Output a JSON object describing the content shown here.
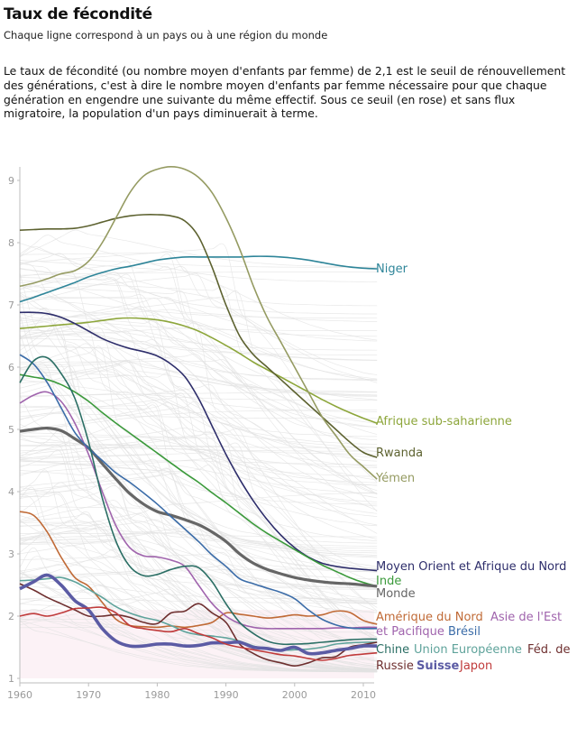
{
  "header": {
    "title": "Taux de fécondité",
    "subtitle": "Chaque ligne correspond à un pays ou à une région du monde",
    "description": "Le taux de fécondité (ou nombre moyen d'enfants par femme) de 2,1 est le seuil de rénouvellement des générations, c'est à dire le nombre moyen d'enfants par femme nécessaire pour que chaque génération en engendre une suivante du même effectif. Sous ce seuil (en rose) et sans flux migratoire, la population d'un pays diminuerait à terme."
  },
  "chart_data": {
    "type": "line",
    "title": "Taux de fécondité",
    "xlabel": "",
    "ylabel": "",
    "xlim": [
      1960,
      2012
    ],
    "ylim": [
      1,
      9.2
    ],
    "x_ticks": [
      "1960",
      "1970",
      "1980",
      "1990",
      "2000",
      "2010"
    ],
    "y_ticks": [
      "1",
      "2",
      "3",
      "4",
      "5",
      "6",
      "7",
      "8",
      "9"
    ],
    "threshold": {
      "value": 2.1,
      "label": "seuil de renouvellement",
      "fill": "#fcf2f6"
    },
    "background_lines_color": "#e2e2e2",
    "x": [
      1960,
      1962,
      1964,
      1966,
      1968,
      1970,
      1972,
      1974,
      1976,
      1978,
      1980,
      1982,
      1984,
      1986,
      1988,
      1990,
      1992,
      1994,
      1996,
      1998,
      2000,
      2002,
      2004,
      2006,
      2008,
      2010,
      2012
    ],
    "series": [
      {
        "name": "Niger",
        "color": "#2e8599",
        "width": 1.6,
        "values": [
          7.05,
          7.12,
          7.2,
          7.28,
          7.36,
          7.45,
          7.52,
          7.58,
          7.62,
          7.67,
          7.72,
          7.75,
          7.77,
          7.77,
          7.77,
          7.77,
          7.77,
          7.78,
          7.78,
          7.77,
          7.75,
          7.72,
          7.68,
          7.64,
          7.61,
          7.59,
          7.58
        ]
      },
      {
        "name": "Afrique sub-saharienne",
        "color": "#8da63b",
        "width": 1.6,
        "values": [
          6.62,
          6.64,
          6.66,
          6.68,
          6.7,
          6.72,
          6.75,
          6.78,
          6.79,
          6.78,
          6.76,
          6.72,
          6.66,
          6.58,
          6.47,
          6.35,
          6.22,
          6.08,
          5.96,
          5.84,
          5.72,
          5.6,
          5.48,
          5.37,
          5.27,
          5.18,
          5.1
        ]
      },
      {
        "name": "Rwanda",
        "color": "#5d6230",
        "width": 1.6,
        "values": [
          8.2,
          8.21,
          8.22,
          8.22,
          8.23,
          8.27,
          8.33,
          8.39,
          8.43,
          8.45,
          8.45,
          8.43,
          8.35,
          8.1,
          7.6,
          7.0,
          6.5,
          6.2,
          6.0,
          5.8,
          5.6,
          5.4,
          5.2,
          5.0,
          4.8,
          4.63,
          4.55
        ]
      },
      {
        "name": "Yémen",
        "color": "#959b62",
        "width": 1.6,
        "values": [
          7.3,
          7.35,
          7.42,
          7.5,
          7.55,
          7.7,
          8.0,
          8.4,
          8.8,
          9.07,
          9.18,
          9.22,
          9.18,
          9.05,
          8.8,
          8.4,
          7.9,
          7.3,
          6.8,
          6.4,
          6.0,
          5.6,
          5.2,
          4.9,
          4.6,
          4.4,
          4.2
        ]
      },
      {
        "name": "Moyen Orient et Afrique du Nord",
        "color": "#2e2e6b",
        "width": 1.6,
        "values": [
          6.88,
          6.88,
          6.86,
          6.8,
          6.7,
          6.58,
          6.46,
          6.37,
          6.3,
          6.25,
          6.18,
          6.05,
          5.85,
          5.5,
          5.05,
          4.6,
          4.2,
          3.85,
          3.55,
          3.3,
          3.1,
          2.95,
          2.85,
          2.8,
          2.77,
          2.75,
          2.73
        ]
      },
      {
        "name": "Inde",
        "color": "#3b9a3b",
        "width": 1.6,
        "values": [
          5.88,
          5.84,
          5.8,
          5.72,
          5.6,
          5.45,
          5.27,
          5.1,
          4.94,
          4.78,
          4.62,
          4.46,
          4.3,
          4.15,
          3.98,
          3.82,
          3.65,
          3.48,
          3.33,
          3.2,
          3.07,
          2.94,
          2.82,
          2.72,
          2.62,
          2.54,
          2.48
        ]
      },
      {
        "name": "Monde",
        "color": "#666666",
        "width": 3.2,
        "values": [
          4.97,
          5.0,
          5.02,
          4.98,
          4.85,
          4.7,
          4.45,
          4.2,
          3.97,
          3.8,
          3.68,
          3.62,
          3.55,
          3.47,
          3.35,
          3.2,
          3.0,
          2.85,
          2.75,
          2.68,
          2.62,
          2.58,
          2.55,
          2.53,
          2.52,
          2.5,
          2.48
        ]
      },
      {
        "name": "Amérique du Nord",
        "color": "#c06a36",
        "width": 1.6,
        "values": [
          3.68,
          3.62,
          3.35,
          2.95,
          2.62,
          2.48,
          2.22,
          1.95,
          1.85,
          1.83,
          1.82,
          1.84,
          1.82,
          1.85,
          1.9,
          2.05,
          2.03,
          2.0,
          1.97,
          1.99,
          2.02,
          2.0,
          2.02,
          2.08,
          2.06,
          1.93,
          1.87
        ]
      },
      {
        "name": "Asie de l'Est et Pacifique",
        "color": "#a064ad",
        "width": 1.6,
        "values": [
          5.42,
          5.55,
          5.6,
          5.45,
          5.1,
          4.6,
          4.0,
          3.45,
          3.1,
          2.97,
          2.95,
          2.9,
          2.8,
          2.5,
          2.2,
          2.0,
          1.88,
          1.82,
          1.8,
          1.8,
          1.8,
          1.8,
          1.8,
          1.81,
          1.81,
          1.82,
          1.82
        ]
      },
      {
        "name": "Brésil",
        "color": "#3b6ca8",
        "width": 1.6,
        "values": [
          6.2,
          6.05,
          5.75,
          5.35,
          4.95,
          4.7,
          4.5,
          4.3,
          4.15,
          3.98,
          3.8,
          3.6,
          3.4,
          3.2,
          2.98,
          2.8,
          2.6,
          2.52,
          2.45,
          2.38,
          2.28,
          2.1,
          1.95,
          1.86,
          1.81,
          1.8,
          1.8
        ]
      },
      {
        "name": "Chine",
        "color": "#2a6e64",
        "width": 1.6,
        "values": [
          5.75,
          6.1,
          6.15,
          5.9,
          5.5,
          4.8,
          3.9,
          3.2,
          2.8,
          2.65,
          2.67,
          2.75,
          2.8,
          2.78,
          2.55,
          2.2,
          1.9,
          1.72,
          1.6,
          1.55,
          1.55,
          1.56,
          1.58,
          1.6,
          1.62,
          1.63,
          1.63
        ]
      },
      {
        "name": "Union Européenne",
        "color": "#5fa39b",
        "width": 1.6,
        "values": [
          2.57,
          2.58,
          2.6,
          2.62,
          2.55,
          2.43,
          2.3,
          2.15,
          2.05,
          1.98,
          1.93,
          1.85,
          1.75,
          1.7,
          1.68,
          1.65,
          1.6,
          1.52,
          1.47,
          1.45,
          1.46,
          1.47,
          1.5,
          1.55,
          1.57,
          1.58,
          1.58
        ]
      },
      {
        "name": "Féd. de Russie",
        "color": "#6e2f2f",
        "width": 1.6,
        "values": [
          2.52,
          2.42,
          2.3,
          2.2,
          2.1,
          2.0,
          2.0,
          2.02,
          1.98,
          1.9,
          1.88,
          2.05,
          2.08,
          2.2,
          2.05,
          1.9,
          1.55,
          1.4,
          1.3,
          1.25,
          1.2,
          1.25,
          1.33,
          1.35,
          1.5,
          1.54,
          1.58
        ]
      },
      {
        "name": "Suisse",
        "color": "#5b5ba4",
        "width": 3.6,
        "values": [
          2.44,
          2.55,
          2.66,
          2.5,
          2.25,
          2.1,
          1.8,
          1.6,
          1.52,
          1.52,
          1.55,
          1.55,
          1.52,
          1.53,
          1.57,
          1.57,
          1.58,
          1.5,
          1.48,
          1.45,
          1.5,
          1.4,
          1.41,
          1.45,
          1.48,
          1.52,
          1.52
        ]
      },
      {
        "name": "Japon",
        "color": "#c03b3b",
        "width": 1.6,
        "values": [
          2.0,
          2.04,
          2.0,
          2.05,
          2.12,
          2.13,
          2.14,
          2.05,
          1.85,
          1.8,
          1.77,
          1.75,
          1.8,
          1.72,
          1.65,
          1.55,
          1.5,
          1.46,
          1.42,
          1.38,
          1.36,
          1.32,
          1.29,
          1.32,
          1.37,
          1.39,
          1.41
        ]
      }
    ],
    "labels": [
      {
        "series": "Niger",
        "text": "Niger",
        "bold": false
      },
      {
        "series": "Afrique sub-saharienne",
        "text": "Afrique sub-saharienne",
        "bold": false
      },
      {
        "series": "Rwanda",
        "text": "Rwanda",
        "bold": false
      },
      {
        "series": "Yémen",
        "text": "Yémen",
        "bold": false
      },
      {
        "series": "Moyen Orient et Afrique du Nord",
        "text": "Moyen Orient et Afrique du Nord",
        "bold": false
      },
      {
        "series": "Inde",
        "text": "Inde",
        "bold": false
      },
      {
        "series": "Monde",
        "text": "Monde",
        "bold": false
      },
      {
        "series": "Amérique du Nord",
        "text": "Amérique du Nord",
        "bold": false
      },
      {
        "series": "Asie de l'Est et Pacifique",
        "text": "Asie de l'Est",
        "bold": false
      },
      {
        "series": "Asie de l'Est et Pacifique",
        "text": "et Pacifique",
        "bold": false
      },
      {
        "series": "Brésil",
        "text": "Brésil",
        "bold": false
      },
      {
        "series": "Chine",
        "text": "Chine",
        "bold": false
      },
      {
        "series": "Union Européenne",
        "text": "Union Européenne",
        "bold": false
      },
      {
        "series": "Féd. de Russie",
        "text": "Féd. de",
        "bold": false
      },
      {
        "series": "Féd. de Russie",
        "text": "Russie",
        "bold": false
      },
      {
        "series": "Suisse",
        "text": "Suisse",
        "bold": true
      },
      {
        "series": "Japon",
        "text": "Japon",
        "bold": false
      }
    ]
  }
}
